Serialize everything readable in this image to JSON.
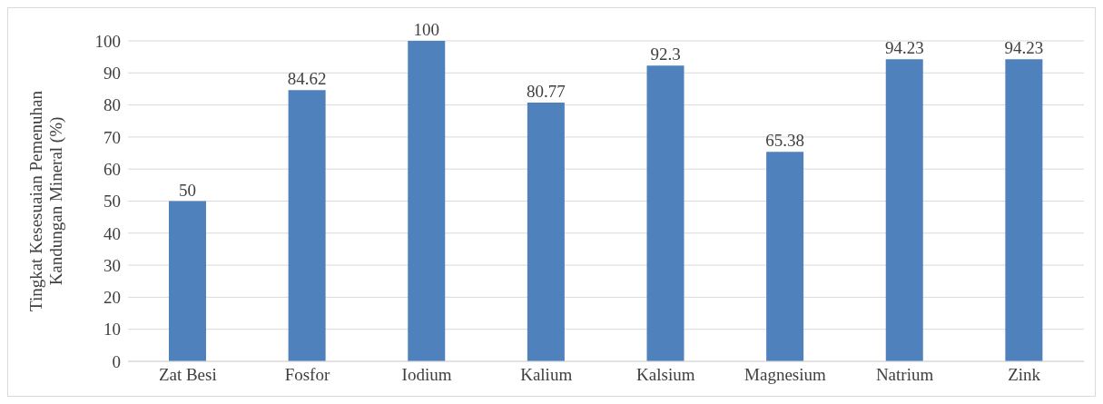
{
  "chart_data": {
    "type": "bar",
    "ylabel": "Tingkat Kesesuaian Pemenuhan Kandungan Mineral (%)",
    "categories": [
      "Zat Besi",
      "Fosfor",
      "Iodium",
      "Kalium",
      "Kalsium",
      "Magnesium",
      "Natrium",
      "Zink"
    ],
    "values": [
      50,
      84.62,
      100,
      80.77,
      92.3,
      65.38,
      94.23,
      94.23
    ],
    "color": "#4f81bd",
    "ylim": [
      0,
      100
    ],
    "yticks": [
      0,
      10,
      20,
      30,
      40,
      50,
      60,
      70,
      80,
      90,
      100
    ],
    "grid": "y",
    "data_labels": true
  }
}
